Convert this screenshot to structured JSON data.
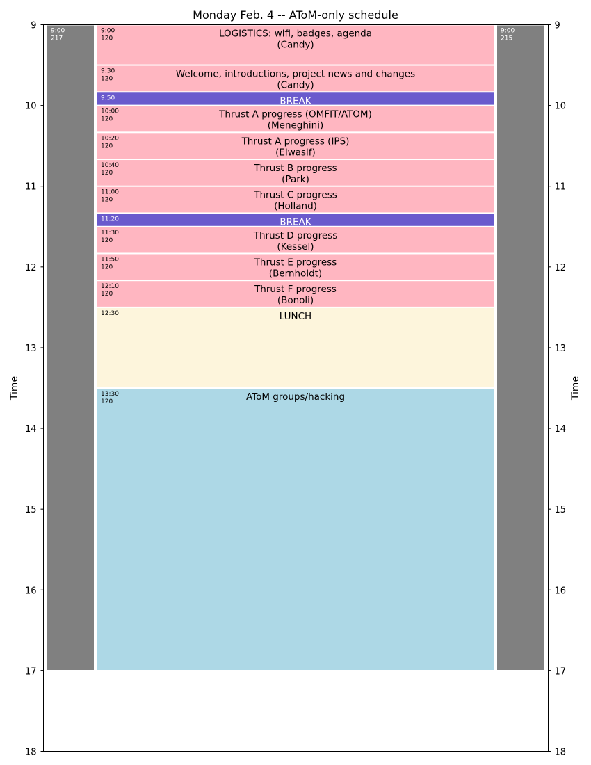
{
  "chart_data": {
    "type": "timeline",
    "title": "Monday Feb. 4 -- AToM-only schedule",
    "ylabel_left": "Time",
    "ylabel_right": "Time",
    "ylim": [
      9,
      18
    ],
    "yticks": [
      9,
      10,
      11,
      12,
      13,
      14,
      15,
      16,
      17,
      18
    ],
    "grid": false,
    "columns": [
      {
        "events": [
          {
            "time": "9:00",
            "room": "217",
            "start": 9.0,
            "end": 17.0,
            "title": "",
            "speaker": "",
            "color": "#808080",
            "text_color": "#ffffff"
          }
        ]
      },
      {
        "events": [
          {
            "time": "9:00",
            "room": "120",
            "start": 9.0,
            "end": 9.5,
            "title": "LOGISTICS: wifi, badges, agenda",
            "speaker": "(Candy)",
            "color": "#ffb6c1",
            "text_color": "#000000"
          },
          {
            "time": "9:30",
            "room": "120",
            "start": 9.5,
            "end": 9.8333,
            "title": "Welcome, introductions, project news and changes",
            "speaker": "(Candy)",
            "color": "#ffb6c1",
            "text_color": "#000000"
          },
          {
            "time": "9:50",
            "room": "",
            "start": 9.8333,
            "end": 10.0,
            "title": "BREAK",
            "speaker": "",
            "color": "#6a5acd",
            "text_color": "#ffffff"
          },
          {
            "time": "10:00",
            "room": "120",
            "start": 10.0,
            "end": 10.3333,
            "title": "Thrust A progress (OMFIT/ATOM)",
            "speaker": "(Meneghini)",
            "color": "#ffb6c1",
            "text_color": "#000000"
          },
          {
            "time": "10:20",
            "room": "120",
            "start": 10.3333,
            "end": 10.6667,
            "title": "Thrust A progress (IPS)",
            "speaker": "(Elwasif)",
            "color": "#ffb6c1",
            "text_color": "#000000"
          },
          {
            "time": "10:40",
            "room": "120",
            "start": 10.6667,
            "end": 11.0,
            "title": "Thrust B progress",
            "speaker": "(Park)",
            "color": "#ffb6c1",
            "text_color": "#000000"
          },
          {
            "time": "11:00",
            "room": "120",
            "start": 11.0,
            "end": 11.3333,
            "title": "Thrust C progress",
            "speaker": "(Holland)",
            "color": "#ffb6c1",
            "text_color": "#000000"
          },
          {
            "time": "11:20",
            "room": "",
            "start": 11.3333,
            "end": 11.5,
            "title": "BREAK",
            "speaker": "",
            "color": "#6a5acd",
            "text_color": "#ffffff"
          },
          {
            "time": "11:30",
            "room": "120",
            "start": 11.5,
            "end": 11.8333,
            "title": "Thrust D progress",
            "speaker": "(Kessel)",
            "color": "#ffb6c1",
            "text_color": "#000000"
          },
          {
            "time": "11:50",
            "room": "120",
            "start": 11.8333,
            "end": 12.1667,
            "title": "Thrust E progress",
            "speaker": "(Bernholdt)",
            "color": "#ffb6c1",
            "text_color": "#000000"
          },
          {
            "time": "12:10",
            "room": "120",
            "start": 12.1667,
            "end": 12.5,
            "title": "Thrust F progress",
            "speaker": "(Bonoli)",
            "color": "#ffb6c1",
            "text_color": "#000000"
          },
          {
            "time": "12:30",
            "room": "",
            "start": 12.5,
            "end": 13.5,
            "title": "LUNCH",
            "speaker": "",
            "color": "#fdf5dc",
            "text_color": "#000000"
          },
          {
            "time": "13:30",
            "room": "120",
            "start": 13.5,
            "end": 17.0,
            "title": "AToM groups/hacking",
            "speaker": "",
            "color": "#add8e6",
            "text_color": "#000000"
          }
        ]
      },
      {
        "events": [
          {
            "time": "9:00",
            "room": "215",
            "start": 9.0,
            "end": 17.0,
            "title": "",
            "speaker": "",
            "color": "#808080",
            "text_color": "#ffffff"
          }
        ]
      }
    ]
  }
}
